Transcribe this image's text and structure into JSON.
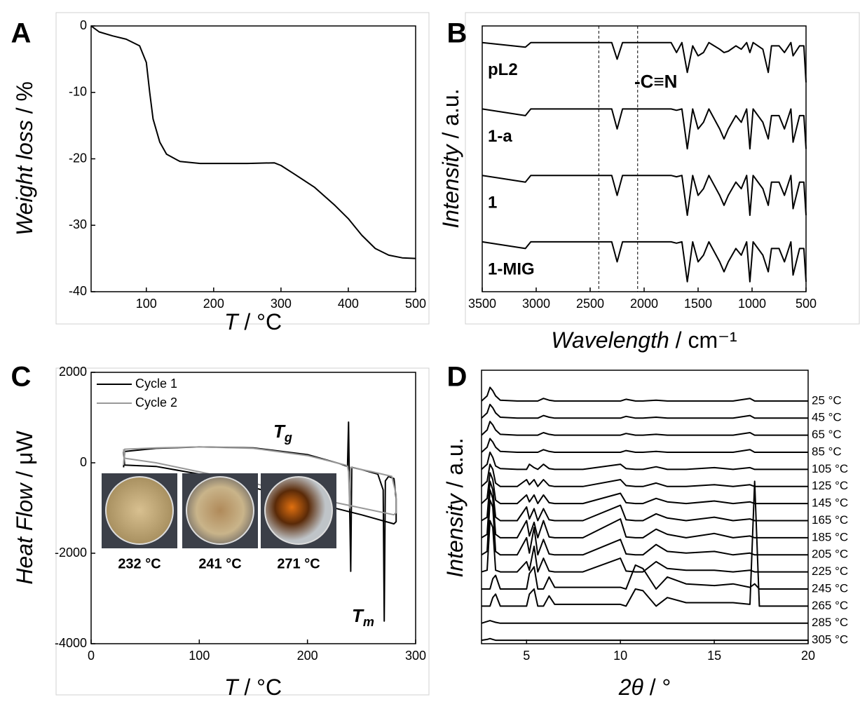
{
  "chart_data": [
    {
      "type": "line",
      "panel": "A",
      "xlabel": [
        "T",
        " / °C"
      ],
      "ylabel": [
        "Weight loss",
        " / %"
      ],
      "x": [
        18,
        30,
        50,
        70,
        90,
        100,
        105,
        110,
        120,
        130,
        150,
        180,
        250,
        290,
        300,
        320,
        350,
        380,
        400,
        420,
        440,
        460,
        480,
        500
      ],
      "xlim": [
        18,
        500
      ],
      "xticks": [
        100,
        200,
        300,
        400,
        500
      ],
      "ylim": [
        -40,
        0
      ],
      "yticks": [
        0,
        -10,
        -20,
        -30,
        -40
      ],
      "series": [
        {
          "color": "#000000",
          "values": [
            0,
            -0.9,
            -1.5,
            -2.0,
            -3.0,
            -5.5,
            -10,
            -14,
            -17.5,
            -19.3,
            -20.4,
            -20.7,
            -20.7,
            -20.6,
            -21,
            -22.3,
            -24.3,
            -27,
            -29,
            -31.5,
            -33.5,
            -34.5,
            -34.9,
            -35
          ]
        }
      ]
    },
    {
      "type": "line",
      "panel": "B",
      "xlabel": [
        "Wavelength",
        " / cm⁻¹"
      ],
      "ylabel": [
        "Intensity",
        " / a.u."
      ],
      "x": [
        3500,
        3100,
        3050,
        2300,
        2250,
        2200,
        1750,
        1700,
        1650,
        1600,
        1550,
        1500,
        1450,
        1400,
        1300,
        1260,
        1220,
        1150,
        1100,
        1050,
        1020,
        990,
        900,
        850,
        820,
        750,
        700,
        640,
        620,
        560,
        520,
        500
      ],
      "xlim": [
        3500,
        500
      ],
      "xticks": [
        3500,
        3000,
        2500,
        2000,
        1500,
        1000,
        500
      ],
      "ylim": [
        0,
        4
      ],
      "vlines": [
        2420,
        2060
      ],
      "annotations": [
        {
          "text": "-C≡N"
        }
      ],
      "series": [
        {
          "name": "pL2",
          "color": "#000000",
          "values": [
            3.75,
            3.68,
            3.75,
            3.75,
            3.5,
            3.75,
            3.75,
            3.6,
            3.75,
            3.3,
            3.7,
            3.55,
            3.6,
            3.75,
            3.65,
            3.6,
            3.62,
            3.7,
            3.65,
            3.75,
            3.6,
            3.75,
            3.65,
            3.3,
            3.7,
            3.7,
            3.6,
            3.75,
            3.55,
            3.7,
            3.7,
            3.15
          ]
        },
        {
          "name": "1-a",
          "color": "#000000",
          "values": [
            2.75,
            2.65,
            2.75,
            2.75,
            2.45,
            2.75,
            2.75,
            2.73,
            2.75,
            2.15,
            2.75,
            2.45,
            2.55,
            2.75,
            2.45,
            2.3,
            2.45,
            2.65,
            2.55,
            2.75,
            2.15,
            2.75,
            2.55,
            2.3,
            2.65,
            2.65,
            2.45,
            2.75,
            2.25,
            2.65,
            2.65,
            2.15
          ]
        },
        {
          "name": "1",
          "color": "#000000",
          "values": [
            1.75,
            1.65,
            1.75,
            1.75,
            1.45,
            1.75,
            1.75,
            1.73,
            1.75,
            1.15,
            1.75,
            1.45,
            1.55,
            1.75,
            1.45,
            1.3,
            1.45,
            1.65,
            1.55,
            1.75,
            1.15,
            1.75,
            1.55,
            1.3,
            1.65,
            1.65,
            1.45,
            1.75,
            1.25,
            1.65,
            1.65,
            1.15
          ]
        },
        {
          "name": "1-MIG",
          "color": "#000000",
          "values": [
            0.75,
            0.65,
            0.75,
            0.75,
            0.45,
            0.75,
            0.75,
            0.73,
            0.75,
            0.15,
            0.75,
            0.45,
            0.55,
            0.75,
            0.45,
            0.3,
            0.45,
            0.65,
            0.55,
            0.75,
            0.15,
            0.75,
            0.55,
            0.3,
            0.65,
            0.65,
            0.45,
            0.75,
            0.25,
            0.65,
            0.65,
            0.15
          ]
        }
      ]
    },
    {
      "type": "line",
      "panel": "C",
      "xlabel": [
        "T",
        " / °C"
      ],
      "ylabel": [
        "Heat Flow",
        " / μW"
      ],
      "xlim": [
        0,
        300
      ],
      "xticks": [
        0,
        100,
        200,
        300
      ],
      "ylim": [
        -4000,
        2000
      ],
      "yticks": [
        -4000,
        -2000,
        0,
        2000
      ],
      "legend": "upper left",
      "annotations": [
        {
          "text": "T",
          "subscript": "g"
        },
        {
          "text": "T",
          "subscript": "m"
        }
      ],
      "inset_labels": [
        "232 °C",
        "241 °C",
        "271 °C"
      ],
      "series": [
        {
          "name": "Cycle 1",
          "color": "#000000",
          "x": [
            30,
            31,
            60,
            100,
            150,
            200,
            230,
            237,
            238,
            239,
            240,
            241,
            250,
            265,
            270,
            271,
            272,
            275,
            280,
            282,
            282,
            280,
            250,
            200,
            150,
            100,
            60,
            31,
            30
          ],
          "values": [
            -100,
            250,
            320,
            350,
            330,
            180,
            -20,
            -80,
            900,
            -1000,
            -2400,
            -100,
            -150,
            -250,
            -600,
            -3500,
            -400,
            -300,
            -350,
            -800,
            -1300,
            -1350,
            -1150,
            -850,
            -550,
            -250,
            -80,
            -50,
            250
          ]
        },
        {
          "name": "Cycle 2",
          "color": "#999999",
          "x": [
            30,
            31,
            60,
            100,
            150,
            200,
            235,
            237,
            238,
            239,
            240,
            260,
            278,
            282,
            282,
            280,
            250,
            200,
            150,
            100,
            60,
            31,
            30
          ],
          "values": [
            -50,
            300,
            330,
            350,
            320,
            160,
            -50,
            -80,
            -200,
            -1000,
            -100,
            -200,
            -300,
            -700,
            -1100,
            -1150,
            -1000,
            -750,
            -450,
            -200,
            0,
            100,
            300
          ]
        }
      ]
    },
    {
      "type": "line",
      "panel": "D",
      "xlabel": [
        "2θ",
        " / °"
      ],
      "ylabel": [
        "Intensity",
        " / a.u."
      ],
      "x": [
        2.6,
        2.9,
        3.05,
        3.2,
        3.35,
        3.6,
        4.5,
        5.0,
        5.15,
        5.4,
        5.6,
        5.9,
        6.2,
        6.5,
        8,
        10.0,
        10.3,
        10.8,
        11.2,
        11.9,
        12.5,
        13.5,
        15.0,
        16.0,
        16.9,
        17.15,
        17.4,
        20
      ],
      "xlim": [
        2.6,
        20
      ],
      "xticks": [
        5,
        10,
        15,
        20
      ],
      "ylim": [
        0,
        16
      ],
      "series": [
        {
          "name": "25 °C",
          "color": "#000000",
          "values": [
            14.2,
            14.5,
            15.0,
            14.8,
            14.5,
            14.25,
            14.2,
            14.2,
            14.2,
            14.2,
            14.2,
            14.35,
            14.25,
            14.2,
            14.2,
            14.2,
            14.3,
            14.2,
            14.2,
            14.25,
            14.2,
            14.2,
            14.2,
            14.2,
            14.35,
            14.2,
            14.2,
            14.2
          ]
        },
        {
          "name": "45 °C",
          "color": "#000000",
          "values": [
            13.2,
            13.5,
            14.0,
            13.8,
            13.5,
            13.25,
            13.2,
            13.2,
            13.2,
            13.2,
            13.2,
            13.35,
            13.25,
            13.2,
            13.2,
            13.2,
            13.3,
            13.2,
            13.2,
            13.25,
            13.2,
            13.2,
            13.2,
            13.2,
            13.35,
            13.2,
            13.2,
            13.2
          ]
        },
        {
          "name": "65 °C",
          "color": "#000000",
          "values": [
            12.2,
            12.5,
            13.0,
            12.8,
            12.5,
            12.25,
            12.2,
            12.2,
            12.2,
            12.2,
            12.2,
            12.35,
            12.25,
            12.2,
            12.2,
            12.2,
            12.3,
            12.2,
            12.2,
            12.25,
            12.2,
            12.2,
            12.2,
            12.2,
            12.35,
            12.2,
            12.2,
            12.2
          ]
        },
        {
          "name": "85 °C",
          "color": "#000000",
          "values": [
            11.2,
            11.5,
            12.0,
            11.8,
            11.5,
            11.25,
            11.2,
            11.2,
            11.2,
            11.2,
            11.2,
            11.35,
            11.25,
            11.2,
            11.2,
            11.2,
            11.3,
            11.2,
            11.2,
            11.25,
            11.2,
            11.2,
            11.2,
            11.2,
            11.35,
            11.2,
            11.2,
            11.2
          ]
        },
        {
          "name": "105 °C",
          "color": "#000000",
          "values": [
            10.2,
            10.5,
            11.2,
            10.9,
            10.4,
            10.25,
            10.2,
            10.2,
            10.5,
            10.3,
            10.2,
            10.5,
            10.25,
            10.2,
            10.2,
            10.5,
            10.25,
            10.2,
            10.2,
            10.35,
            10.2,
            10.2,
            10.3,
            10.2,
            10.3,
            10.2,
            10.2,
            10.2
          ]
        },
        {
          "name": "125 °C",
          "color": "#000000",
          "values": [
            9.2,
            9.5,
            10.5,
            10.2,
            9.4,
            9.2,
            9.2,
            9.6,
            9.3,
            9.6,
            9.2,
            9.6,
            9.25,
            9.2,
            9.2,
            9.6,
            9.25,
            9.2,
            9.2,
            9.4,
            9.2,
            9.2,
            9.3,
            9.2,
            9.3,
            9.2,
            9.2,
            9.2
          ]
        },
        {
          "name": "145 °C",
          "color": "#000000",
          "values": [
            8.2,
            8.5,
            10.0,
            9.6,
            8.4,
            8.2,
            8.2,
            8.7,
            8.3,
            8.7,
            8.2,
            8.7,
            8.25,
            8.2,
            8.2,
            8.8,
            8.25,
            8.2,
            8.2,
            8.5,
            8.3,
            8.2,
            8.35,
            8.2,
            8.3,
            8.2,
            8.2,
            8.2
          ]
        },
        {
          "name": "165 °C",
          "color": "#000000",
          "values": [
            7.2,
            7.4,
            9.5,
            9.0,
            7.4,
            7.2,
            7.2,
            8.0,
            7.3,
            7.9,
            7.2,
            7.9,
            7.25,
            7.2,
            7.2,
            8.1,
            7.25,
            7.2,
            7.2,
            7.6,
            7.35,
            7.2,
            7.4,
            7.2,
            7.3,
            7.2,
            7.2,
            7.2
          ]
        },
        {
          "name": "185 °C",
          "color": "#000000",
          "values": [
            6.2,
            6.4,
            9.0,
            8.5,
            6.4,
            6.2,
            6.2,
            7.2,
            6.3,
            7.1,
            6.2,
            7.2,
            6.25,
            6.2,
            6.2,
            7.3,
            6.25,
            6.2,
            6.2,
            6.7,
            6.4,
            6.2,
            6.45,
            6.2,
            6.3,
            6.2,
            6.2,
            6.2
          ]
        },
        {
          "name": "205 °C",
          "color": "#000000",
          "values": [
            5.2,
            5.4,
            8.4,
            8.0,
            5.4,
            5.2,
            5.2,
            6.2,
            5.3,
            6.8,
            5.2,
            6.1,
            5.25,
            5.2,
            5.2,
            6.1,
            5.25,
            5.2,
            5.2,
            5.8,
            5.4,
            5.3,
            5.4,
            5.2,
            5.3,
            5.2,
            5.2,
            5.2
          ]
        },
        {
          "name": "225 °C",
          "color": "#000000",
          "values": [
            4.2,
            4.3,
            7.2,
            6.8,
            4.3,
            4.2,
            4.2,
            4.8,
            4.3,
            5.7,
            4.2,
            5.0,
            4.25,
            4.2,
            4.2,
            5.0,
            4.25,
            4.2,
            4.2,
            4.8,
            4.4,
            4.3,
            4.3,
            4.2,
            4.3,
            4.2,
            4.2,
            4.2
          ]
        },
        {
          "name": "245 °C",
          "color": "#000000",
          "values": [
            3.2,
            3.2,
            3.2,
            3.8,
            4.0,
            3.2,
            3.2,
            3.2,
            4.1,
            4.5,
            3.2,
            3.2,
            3.9,
            3.3,
            3.3,
            3.3,
            3.2,
            4.6,
            4.4,
            3.2,
            3.9,
            3.5,
            3.4,
            3.5,
            3.3,
            3.5,
            3.2,
            3.2
          ]
        },
        {
          "name": "265 °C",
          "color": "#000000",
          "values": [
            2.2,
            2.2,
            2.2,
            2.7,
            2.9,
            2.2,
            2.2,
            2.2,
            2.9,
            3.2,
            2.2,
            2.2,
            2.8,
            2.3,
            2.3,
            2.3,
            2.2,
            3.2,
            3.1,
            2.2,
            2.7,
            2.4,
            2.4,
            2.4,
            2.3,
            9.5,
            2.2,
            2.2
          ]
        },
        {
          "name": "285 °C",
          "color": "#000000",
          "values": [
            1.2,
            1.3,
            1.35,
            1.3,
            1.25,
            1.2,
            1.2,
            1.2,
            1.2,
            1.2,
            1.2,
            1.2,
            1.2,
            1.2,
            1.2,
            1.2,
            1.2,
            1.2,
            1.2,
            1.2,
            1.2,
            1.2,
            1.2,
            1.2,
            1.2,
            1.2,
            1.2,
            1.2
          ]
        },
        {
          "name": "305 °C",
          "color": "#000000",
          "values": [
            0.2,
            0.25,
            0.3,
            0.25,
            0.2,
            0.2,
            0.2,
            0.2,
            0.2,
            0.2,
            0.2,
            0.2,
            0.2,
            0.2,
            0.2,
            0.2,
            0.2,
            0.2,
            0.2,
            0.2,
            0.2,
            0.2,
            0.2,
            0.2,
            0.2,
            0.2,
            0.2,
            0.2
          ]
        }
      ]
    }
  ]
}
